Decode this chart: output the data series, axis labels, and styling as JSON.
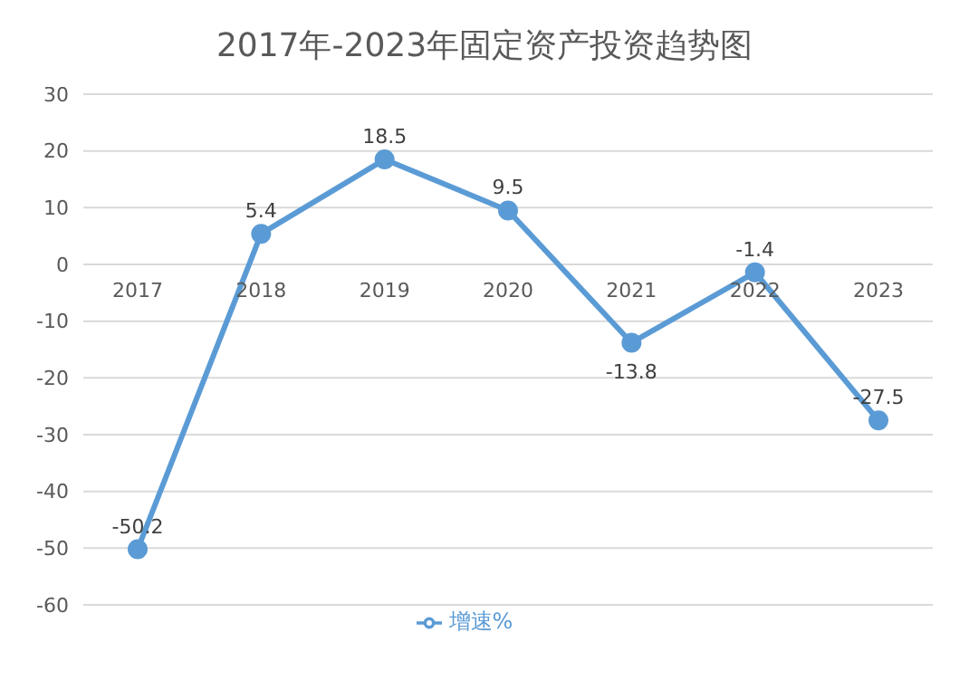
{
  "chart_data": {
    "type": "line",
    "title": "2017年-2023年固定资产投资趋势图",
    "categories": [
      "2017",
      "2018",
      "2019",
      "2020",
      "2021",
      "2022",
      "2023"
    ],
    "series": [
      {
        "name": "增速%",
        "color": "#5b9bd5",
        "values": [
          -50.2,
          5.4,
          18.5,
          9.5,
          -13.8,
          -1.4,
          -27.5
        ]
      }
    ],
    "ylim": [
      -60,
      30
    ],
    "yticks": [
      -60,
      -50,
      -40,
      -30,
      -20,
      -10,
      0,
      10,
      20,
      30
    ],
    "grid": "y",
    "legend": "bottom",
    "marker": "circle",
    "data_labels": true
  }
}
